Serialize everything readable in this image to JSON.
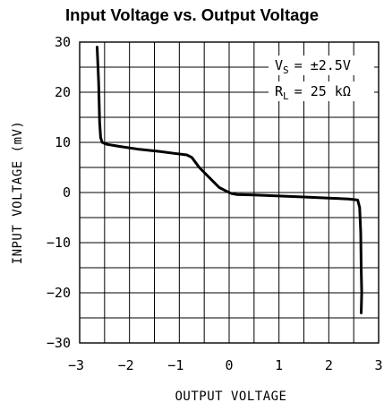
{
  "chart_data": {
    "type": "line",
    "title": "Input Voltage vs. Output Voltage",
    "xlabel": "OUTPUT VOLTAGE",
    "ylabel": "INPUT VOLTAGE (mV)",
    "xlim": [
      -3,
      3
    ],
    "ylim": [
      -30,
      30
    ],
    "x_ticks": [
      "-3",
      "-2",
      "-1",
      "0",
      "1",
      "2",
      "3"
    ],
    "y_ticks": [
      "30",
      "20",
      "10",
      "0",
      "-10",
      "-20",
      "-30"
    ],
    "grid": true,
    "legend": {
      "line1": {
        "symbol": "V",
        "sub": "S",
        "value": "= ±2.5V"
      },
      "line2": {
        "symbol": "R",
        "sub": "L",
        "value": "= 25 kΩ"
      },
      "placement": "top-right"
    },
    "series": [
      {
        "x": [
          -2.65,
          -2.62,
          -2.6,
          -2.58,
          -2.55,
          -2.45,
          -2.2,
          -1.8,
          -1.4,
          -1.1,
          -0.85,
          -0.75,
          -0.6,
          -0.4,
          -0.2,
          0.0,
          0.05,
          0.15,
          0.5,
          1.0,
          1.5,
          2.0,
          2.4,
          2.58,
          2.62,
          2.64,
          2.65,
          2.66,
          2.65
        ],
        "y": [
          29.0,
          22.0,
          14.0,
          11.0,
          10.0,
          9.6,
          9.2,
          8.6,
          8.2,
          7.8,
          7.5,
          7.0,
          5.0,
          3.0,
          1.0,
          0.0,
          -0.2,
          -0.4,
          -0.5,
          -0.7,
          -0.9,
          -1.1,
          -1.3,
          -1.5,
          -3.0,
          -8.0,
          -15.0,
          -20.0,
          -24.0
        ]
      }
    ]
  }
}
